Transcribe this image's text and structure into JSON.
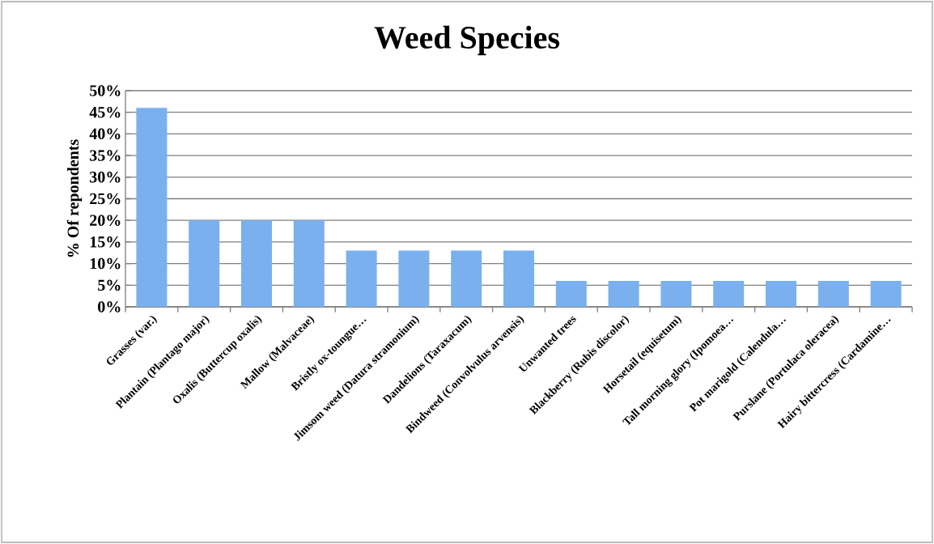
{
  "chart_data": {
    "type": "bar",
    "title": "Weed Species",
    "ylabel": "% Of repondents",
    "categories": [
      "Grasses (var.)",
      "Plantain (Plantago major)",
      "Oxalis (Buttercup oxalis)",
      "Mallow (Malvaceae)",
      "Bristly ox-toungue…",
      "Jimsom weed (Datura stramonium)",
      "Dandelions (Taraxacum)",
      "Bindweed (Convolvulus arvensis)",
      "Unwanted trees",
      "Blackberry (Rubis discolor)",
      "Horsetail (equisetum)",
      "Tall morning glory (Ipomoea…",
      "Pot marigold (Calendula…",
      "Purslane (Portulaca oleracea)",
      "Hairy bittercress (Cardamine…"
    ],
    "values": [
      46,
      20,
      20,
      20,
      13,
      13,
      13,
      13,
      6,
      6,
      6,
      6,
      6,
      6,
      6
    ],
    "color": "#7ab0ee",
    "ylim": [
      0,
      50
    ],
    "yticks": [
      {
        "value": 0,
        "label": "0%"
      },
      {
        "value": 5,
        "label": "5%"
      },
      {
        "value": 10,
        "label": "10%"
      },
      {
        "value": 15,
        "label": "15%"
      },
      {
        "value": 20,
        "label": "20%"
      },
      {
        "value": 25,
        "label": "25%"
      },
      {
        "value": 30,
        "label": "30%"
      },
      {
        "value": 35,
        "label": "35%"
      },
      {
        "value": 40,
        "label": "40%"
      },
      {
        "value": 45,
        "label": "45%"
      },
      {
        "value": 50,
        "label": "50%"
      }
    ],
    "grid": "y"
  }
}
